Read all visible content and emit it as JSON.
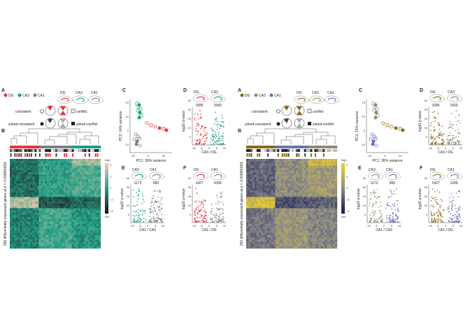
{
  "figures": [
    {
      "panel_labels": {
        "A": "A",
        "B": "B",
        "C": "C",
        "D": "D",
        "E": "E",
        "F": "F"
      },
      "colors": {
        "dg": "#e8343c",
        "ca3": "#1a9c86",
        "ca1": "#7d7f82",
        "low": "#1e1016",
        "mid": "#1f9e84",
        "high": "#f2c7a6",
        "consistent": "#ffffff"
      },
      "legend": {
        "dg": "DG",
        "ca3": "CA3",
        "ca1": "CA1",
        "consistent": "consistent",
        "conflict": "conflict",
        "yoked_consistent": "yoked-consistent",
        "yoked_conflict": "yoked-conflict"
      },
      "heatmap": {
        "ylabel": "250 differentially expressed genes at p < 0.000000001",
        "scale_high": "high",
        "scale_low": "low",
        "ticks": [
          "4",
          "2",
          "0",
          "−2",
          "−4"
        ]
      },
      "pca": {
        "xlabel": "PC1: 36% variance",
        "ylabel": "PC2: 14% variance",
        "xticks": [
          "-20",
          "0",
          "20"
        ],
        "yticks": [
          "20",
          "10",
          "0",
          "-10"
        ]
      },
      "volcano_d": {
        "left": "DG",
        "right": "CA3",
        "n_left": "1585",
        "n_right": "1560",
        "xlabel": "CA3 / DG",
        "ylabel": "log10 p-value",
        "xticks": [
          "-10",
          "-5",
          "0",
          "5",
          "10"
        ],
        "yticks": [
          "40",
          "30",
          "20",
          "10",
          "0"
        ]
      },
      "volcano_e": {
        "left": "CA3",
        "right": "CA1",
        "n_left": "1172",
        "n_right": "850",
        "xlabel": "CA1 / CA3",
        "ylabel": "log10 p-value",
        "xticks": [
          "-10",
          "-5",
          "0",
          "5",
          "10"
        ],
        "yticks": [
          "40",
          "30",
          "20",
          "10",
          "0"
        ]
      },
      "volcano_f": {
        "left": "DG",
        "right": "CA1",
        "n_left": "1427",
        "n_right": "1099",
        "xlabel": "CA1 / DG",
        "ylabel": "log10 p-value",
        "xticks": [
          "-10",
          "-5",
          "0",
          "5",
          "10"
        ],
        "yticks": [
          "40",
          "30",
          "20",
          "10",
          "0"
        ]
      }
    },
    {
      "panel_labels": {
        "A": "A",
        "B": "B",
        "C": "C",
        "D": "D",
        "E": "E",
        "F": "F"
      },
      "colors": {
        "dg": "#8b6914",
        "ca3": "#8f8a76",
        "ca1": "#6674b8",
        "low": "#151a55",
        "mid": "#8a8a86",
        "high": "#f4d020",
        "consistent": "#ffffff"
      },
      "legend": {
        "dg": "DG",
        "ca3": "CA3",
        "ca1": "CA1",
        "consistent": "consistent",
        "conflict": "conflict",
        "yoked_consistent": "yoked-consistent",
        "yoked_conflict": "yoked-conflict"
      },
      "heatmap": {
        "ylabel": "250 differentially expressed genes at p < 0.000000001",
        "scale_high": "high",
        "scale_low": "low",
        "ticks": [
          "4",
          "2",
          "0",
          "−2",
          "−4"
        ]
      },
      "pca": {
        "xlabel": "PC1: 36% variance",
        "ylabel": "PC2: 14% variance",
        "xticks": [
          "-20",
          "0",
          "20"
        ],
        "yticks": [
          "20",
          "10",
          "0",
          "-10"
        ]
      },
      "volcano_d": {
        "left": "DG",
        "right": "CA3",
        "n_left": "1585",
        "n_right": "1560",
        "xlabel": "CA3 / DG",
        "ylabel": "log10 p-value",
        "xticks": [
          "-10",
          "-5",
          "0",
          "5",
          "10"
        ],
        "yticks": [
          "40",
          "30",
          "20",
          "10",
          "0"
        ]
      },
      "volcano_e": {
        "left": "CA3",
        "right": "CA1",
        "n_left": "1172",
        "n_right": "850",
        "xlabel": "CA1 / CA3",
        "ylabel": "log10 p-value",
        "xticks": [
          "-10",
          "-5",
          "0",
          "5",
          "10"
        ],
        "yticks": [
          "40",
          "30",
          "20",
          "10",
          "0"
        ]
      },
      "volcano_f": {
        "left": "DG",
        "right": "CA1",
        "n_left": "1427",
        "n_right": "1099",
        "xlabel": "CA1 / DG",
        "ylabel": "log10 p-value",
        "xticks": [
          "-10",
          "-5",
          "0",
          "5",
          "10"
        ],
        "yticks": [
          "40",
          "30",
          "20",
          "10",
          "0"
        ]
      }
    }
  ]
}
